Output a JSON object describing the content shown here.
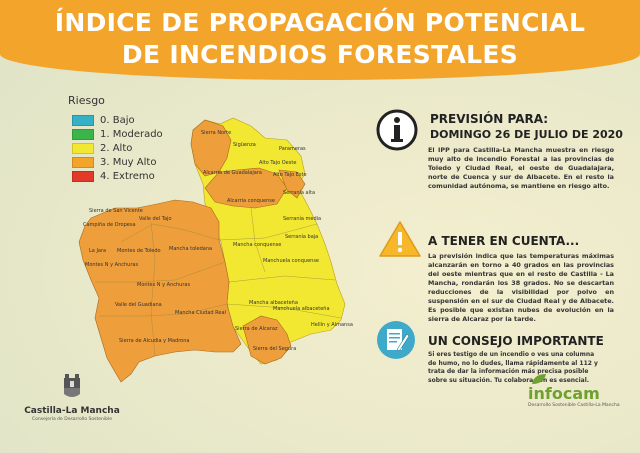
{
  "header": {
    "title_line1": "ÍNDICE DE PROPAGACIÓN POTENCIAL",
    "title_line2": "DE INCENDIOS FORESTALES"
  },
  "legend": {
    "title": "Riesgo",
    "items": [
      {
        "label": "0. Bajo",
        "color": "#35b0c4"
      },
      {
        "label": "1. Moderado",
        "color": "#3bb54a"
      },
      {
        "label": "2. Alto",
        "color": "#f2e832"
      },
      {
        "label": "3. Muy Alto",
        "color": "#f2a52a"
      },
      {
        "label": "4. Extremo",
        "color": "#e23a2a"
      }
    ]
  },
  "map": {
    "colors": {
      "alto": "#f2e832",
      "muy_alto": "#ee9e3a"
    },
    "labels": [
      "Sierra Norte",
      "Sigüenza",
      "Parameras",
      "Alcarria de Guadalajara",
      "Alto Tajo Oeste",
      "Alto Tajo Este",
      "Serranía alta",
      "Alcarria conquense",
      "Sierra de San Vicente",
      "Valle del Tajo",
      "Campiña de Oropesa",
      "Serranía media",
      "Montes de Toledo",
      "Mancha toledana",
      "La Jara",
      "Serranía baja",
      "Mancha conquense",
      "Montes N y Anchuras",
      "Manchuela conquense",
      "Montes N y Anchuras",
      "Mancha albaceteña",
      "Valle del Guadiana",
      "Mancha Ciudad Real",
      "Manchuela albaceteña",
      "Sierra de Alcaraz",
      "Hellín y Almansa",
      "Sierra de Alcudia y Madrona",
      "Sierra del Segura"
    ]
  },
  "prevision": {
    "heading_line1": "PREVISIÓN PARA:",
    "heading_line2": "DOMINGO 26 DE JULIO DE 2020",
    "text": "El IPP para Castilla-La Mancha muestra en riesgo muy alto de incendio Forestal a las provincias de Toledo y Ciudad Real, el oeste de Guadalajara, norte de Cuenca y sur de Albacete. En el resto la comunidad autónoma, se mantiene en riesgo alto."
  },
  "atencion": {
    "heading": "A TENER EN CUENTA...",
    "text": "La previsión indica que las temperaturas máximas alcanzarán en torno a 40 grados en las provincias del oeste mientras que en el resto de Castilla - La Mancha, rondarán los 38 grados. No se descartan reducciones de la visibilidad por polvo en suspensión en el sur de Ciudad Real y de Albacete. Es posible que existan nubes de evolución en la sierra de Alcaraz por la tarde."
  },
  "consejo": {
    "heading": "UN CONSEJO IMPORTANTE",
    "text": "Si eres testigo de un incendio o ves una columna de humo, no lo dudes, llama rápidamente al 112 y trata de dar la información más precisa posible sobre su situación. Tu colaboración es esencial."
  },
  "logos": {
    "clm_name": "Castilla-La Mancha",
    "clm_sub": "Consejería de Desarrollo Sostenible",
    "infocam_name": "infocam",
    "infocam_sub": "Desarrollo Sostenible Castilla-La Mancha"
  }
}
